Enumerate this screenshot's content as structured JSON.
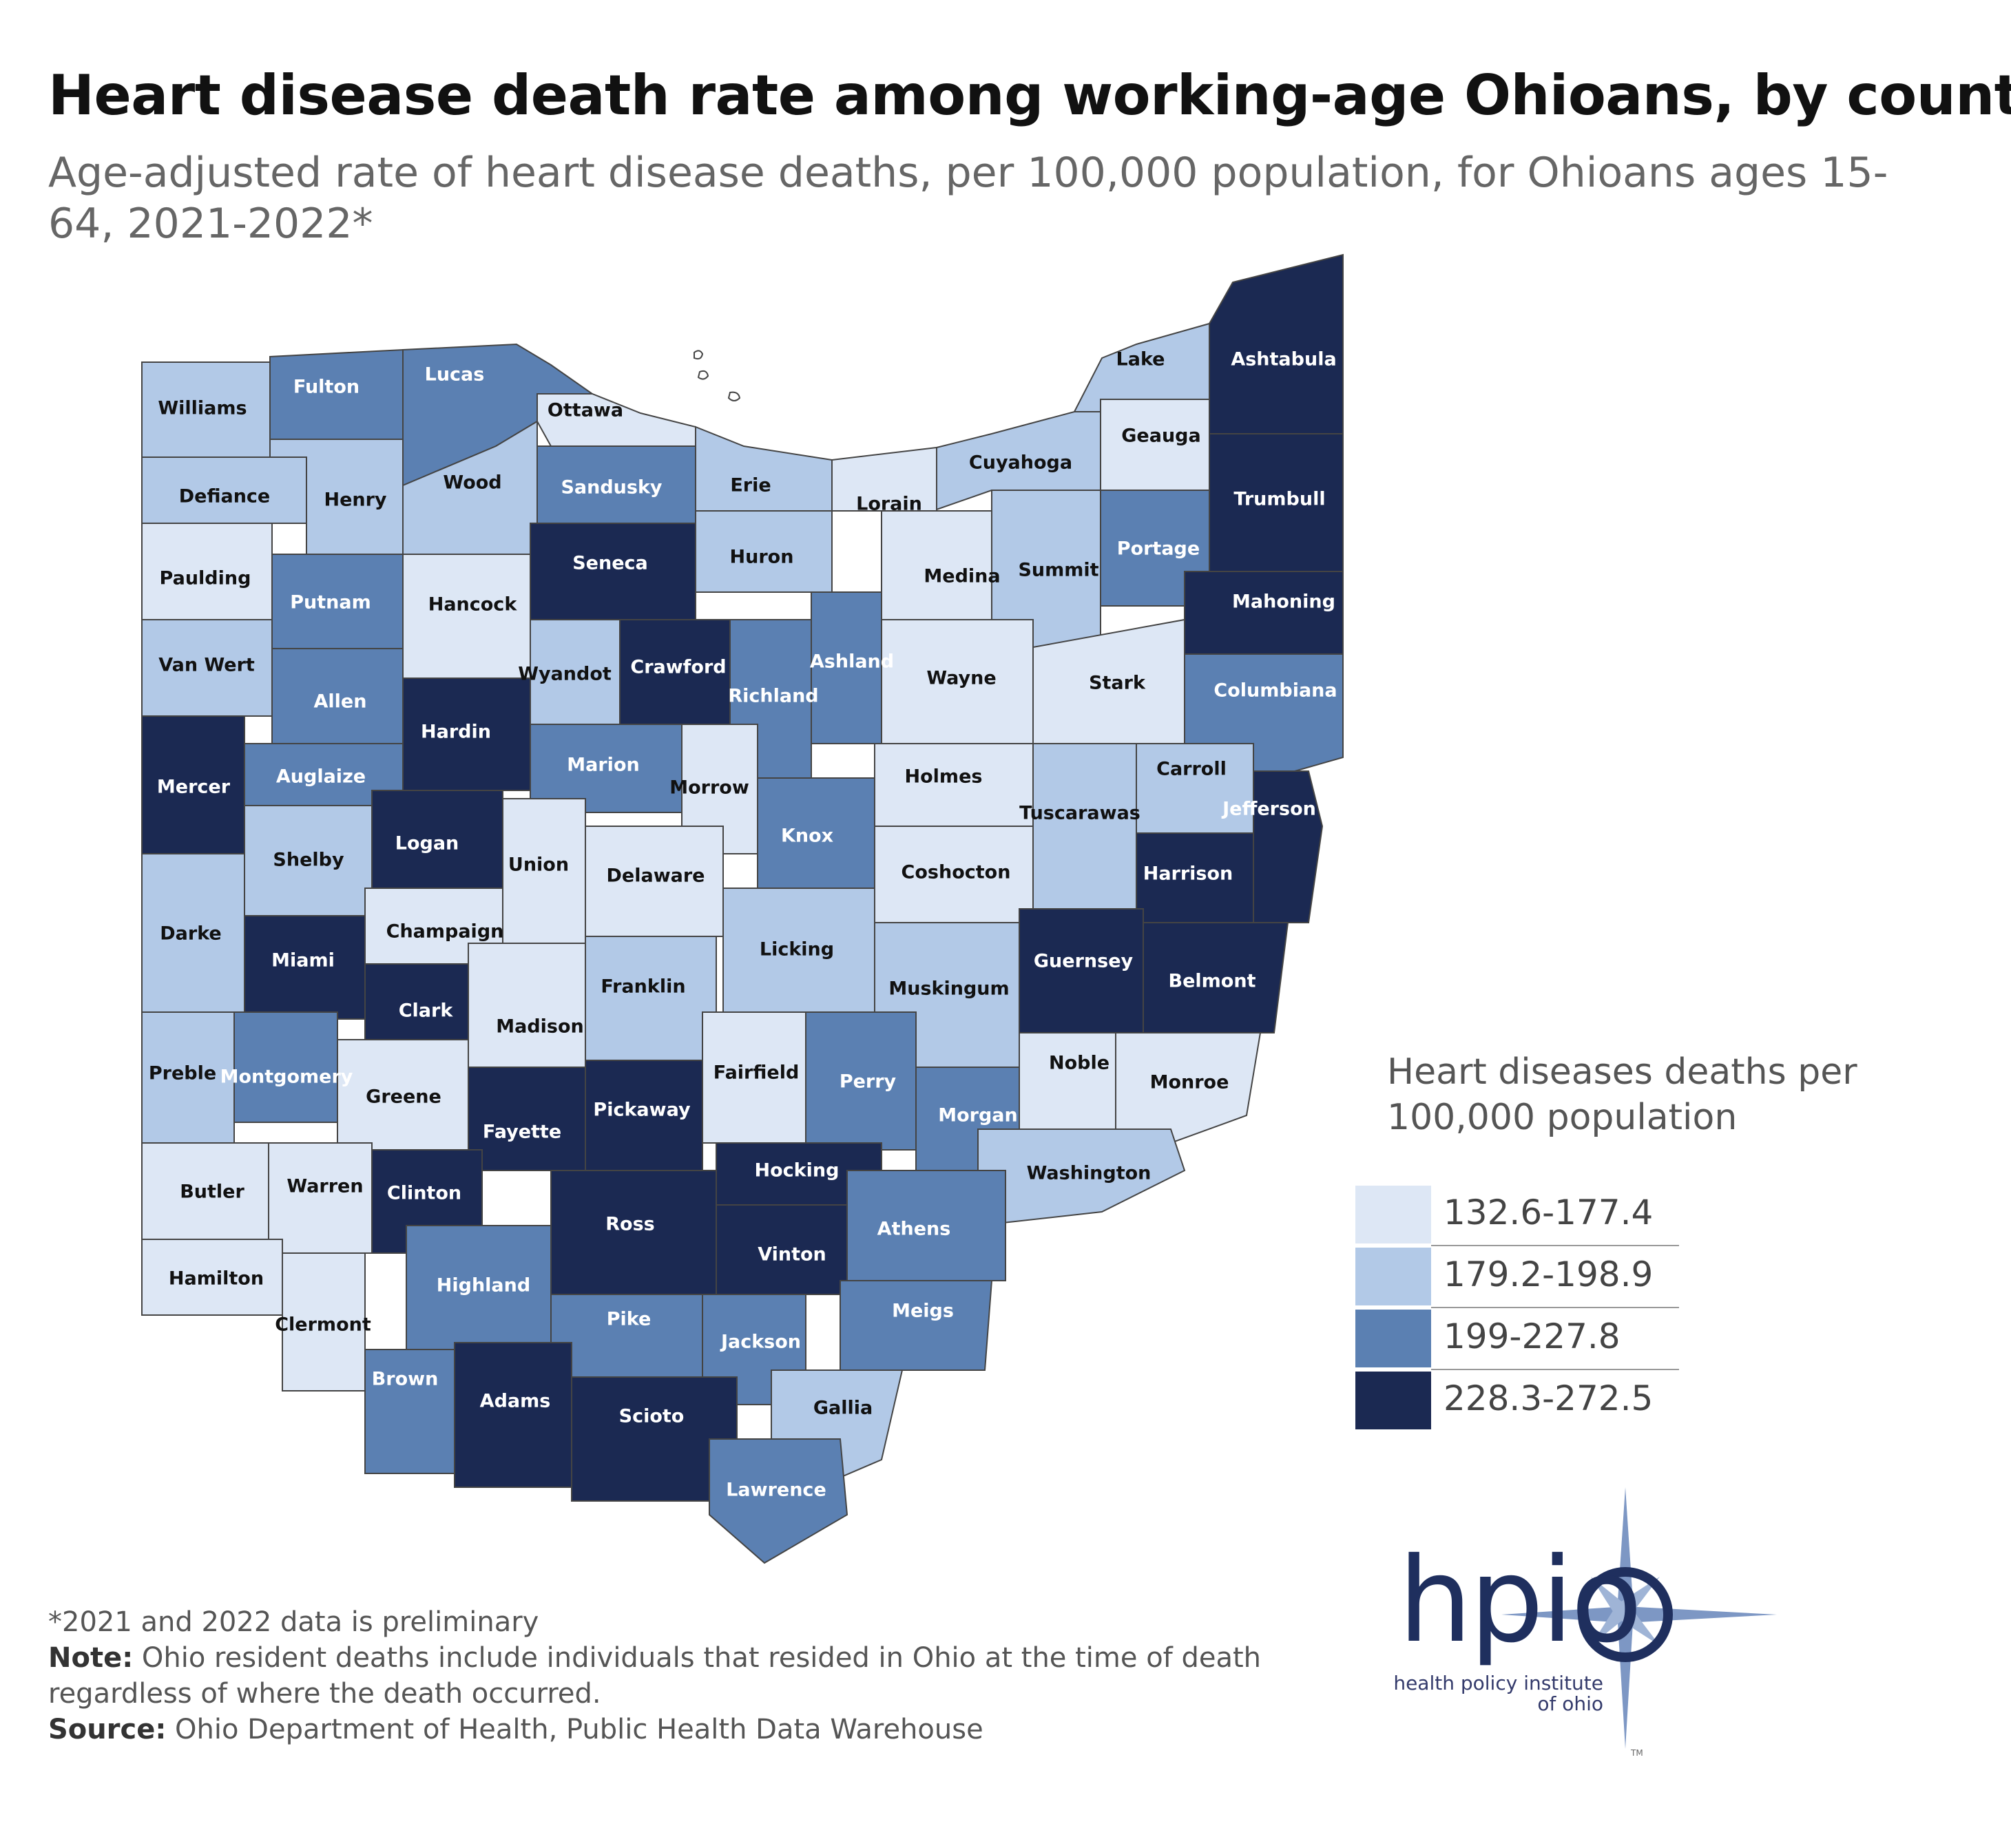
{
  "title": "Heart disease death rate among working-age Ohioans, by county",
  "subtitle": "Age-adjusted rate of heart disease deaths, per 100,000 population, for Ohioans ages 15-64, 2021-2022*",
  "legend": {
    "title": "Heart diseases deaths per 100,000 population",
    "bins": [
      {
        "label": "132.6-177.4",
        "color": "#dde7f5"
      },
      {
        "label": "179.2-198.9",
        "color": "#b2c9e7"
      },
      {
        "label": "199-227.8",
        "color": "#5b80b2"
      },
      {
        "label": "228.3-272.5",
        "color": "#1b2952"
      }
    ]
  },
  "counties": [
    {
      "name": "Williams",
      "bin": 1
    },
    {
      "name": "Fulton",
      "bin": 2
    },
    {
      "name": "Lucas",
      "bin": 2
    },
    {
      "name": "Ottawa",
      "bin": 0
    },
    {
      "name": "Defiance",
      "bin": 1
    },
    {
      "name": "Henry",
      "bin": 1
    },
    {
      "name": "Wood",
      "bin": 1
    },
    {
      "name": "Sandusky",
      "bin": 2
    },
    {
      "name": "Erie",
      "bin": 1
    },
    {
      "name": "Lorain",
      "bin": 0
    },
    {
      "name": "Cuyahoga",
      "bin": 1
    },
    {
      "name": "Lake",
      "bin": 1
    },
    {
      "name": "Geauga",
      "bin": 0
    },
    {
      "name": "Ashtabula",
      "bin": 3
    },
    {
      "name": "Paulding",
      "bin": 0
    },
    {
      "name": "Putnam",
      "bin": 2
    },
    {
      "name": "Hancock",
      "bin": 0
    },
    {
      "name": "Seneca",
      "bin": 3
    },
    {
      "name": "Huron",
      "bin": 1
    },
    {
      "name": "Medina",
      "bin": 0
    },
    {
      "name": "Summit",
      "bin": 1
    },
    {
      "name": "Portage",
      "bin": 2
    },
    {
      "name": "Trumbull",
      "bin": 3
    },
    {
      "name": "Van Wert",
      "bin": 1
    },
    {
      "name": "Allen",
      "bin": 2
    },
    {
      "name": "Hardin",
      "bin": 3
    },
    {
      "name": "Wyandot",
      "bin": 1
    },
    {
      "name": "Crawford",
      "bin": 3
    },
    {
      "name": "Richland",
      "bin": 2
    },
    {
      "name": "Ashland",
      "bin": 2
    },
    {
      "name": "Wayne",
      "bin": 0
    },
    {
      "name": "Stark",
      "bin": 0
    },
    {
      "name": "Mahoning",
      "bin": 3
    },
    {
      "name": "Columbiana",
      "bin": 2
    },
    {
      "name": "Mercer",
      "bin": 3
    },
    {
      "name": "Auglaize",
      "bin": 2
    },
    {
      "name": "Logan",
      "bin": 3
    },
    {
      "name": "Marion",
      "bin": 2
    },
    {
      "name": "Morrow",
      "bin": 0
    },
    {
      "name": "Knox",
      "bin": 2
    },
    {
      "name": "Holmes",
      "bin": 0
    },
    {
      "name": "Tuscarawas",
      "bin": 1
    },
    {
      "name": "Carroll",
      "bin": 1
    },
    {
      "name": "Jefferson",
      "bin": 3
    },
    {
      "name": "Shelby",
      "bin": 1
    },
    {
      "name": "Union",
      "bin": 0
    },
    {
      "name": "Delaware",
      "bin": 0
    },
    {
      "name": "Coshocton",
      "bin": 0
    },
    {
      "name": "Harrison",
      "bin": 3
    },
    {
      "name": "Darke",
      "bin": 1
    },
    {
      "name": "Miami",
      "bin": 3
    },
    {
      "name": "Champaign",
      "bin": 0
    },
    {
      "name": "Licking",
      "bin": 1
    },
    {
      "name": "Guernsey",
      "bin": 3
    },
    {
      "name": "Belmont",
      "bin": 3
    },
    {
      "name": "Clark",
      "bin": 3
    },
    {
      "name": "Madison",
      "bin": 0
    },
    {
      "name": "Franklin",
      "bin": 1
    },
    {
      "name": "Muskingum",
      "bin": 1
    },
    {
      "name": "Noble",
      "bin": 0
    },
    {
      "name": "Monroe",
      "bin": 0
    },
    {
      "name": "Preble",
      "bin": 1
    },
    {
      "name": "Montgomery",
      "bin": 2
    },
    {
      "name": "Greene",
      "bin": 0
    },
    {
      "name": "Fayette",
      "bin": 3
    },
    {
      "name": "Pickaway",
      "bin": 3
    },
    {
      "name": "Fairfield",
      "bin": 0
    },
    {
      "name": "Perry",
      "bin": 2
    },
    {
      "name": "Morgan",
      "bin": 2
    },
    {
      "name": "Washington",
      "bin": 1
    },
    {
      "name": "Butler",
      "bin": 0
    },
    {
      "name": "Warren",
      "bin": 0
    },
    {
      "name": "Clinton",
      "bin": 3
    },
    {
      "name": "Ross",
      "bin": 3
    },
    {
      "name": "Hocking",
      "bin": 3
    },
    {
      "name": "Athens",
      "bin": 2
    },
    {
      "name": "Hamilton",
      "bin": 0
    },
    {
      "name": "Clermont",
      "bin": 0
    },
    {
      "name": "Highland",
      "bin": 2
    },
    {
      "name": "Vinton",
      "bin": 3
    },
    {
      "name": "Meigs",
      "bin": 2
    },
    {
      "name": "Pike",
      "bin": 2
    },
    {
      "name": "Jackson",
      "bin": 2
    },
    {
      "name": "Brown",
      "bin": 2
    },
    {
      "name": "Adams",
      "bin": 3
    },
    {
      "name": "Scioto",
      "bin": 3
    },
    {
      "name": "Gallia",
      "bin": 1
    },
    {
      "name": "Lawrence",
      "bin": 2
    }
  ],
  "notes": {
    "preliminary": "*2021 and 2022 data is preliminary",
    "note_label": "Note:",
    "note_text": " Ohio resident deaths include individuals that resided in Ohio at the time of death regardless of where the death occurred.",
    "source_label": "Source:",
    "source_text": " Ohio Department of Health, Public Health Data Warehouse"
  },
  "logo": {
    "mark": "hpio",
    "line1": "health policy institute",
    "line2": "of ohio",
    "tm": "TM"
  }
}
